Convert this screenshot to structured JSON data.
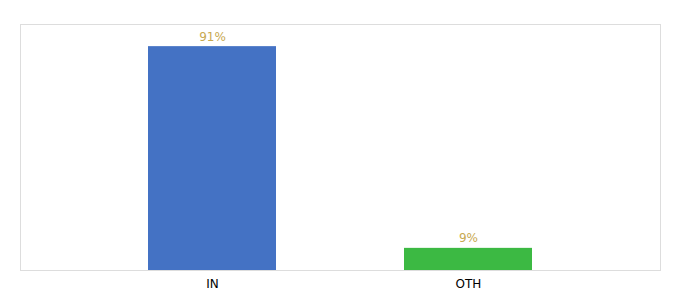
{
  "chart_data": {
    "type": "bar",
    "categories": [
      "IN",
      "OTH"
    ],
    "values": [
      91,
      9
    ],
    "value_labels": [
      "91%",
      "9%"
    ],
    "colors": [
      "#4472c4",
      "#3cb943"
    ],
    "ylim": [
      0,
      100
    ],
    "data_labels": true,
    "tick_labels": "x"
  }
}
